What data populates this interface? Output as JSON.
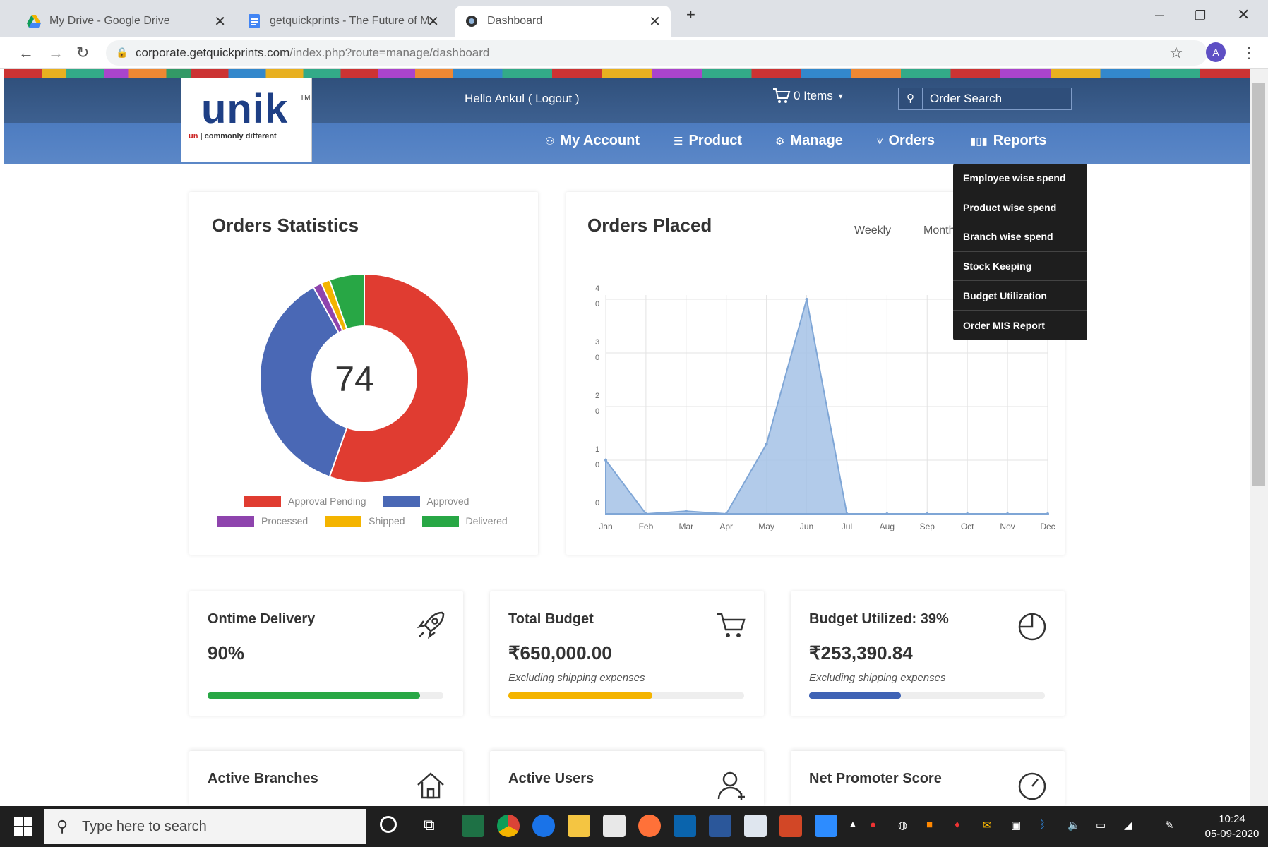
{
  "browser": {
    "tabs": [
      {
        "title": "My Drive - Google Drive",
        "icon": "google-drive-icon"
      },
      {
        "title": "getquickprints - The Future of M",
        "icon": "document-icon"
      },
      {
        "title": "Dashboard",
        "icon": "site-icon"
      }
    ],
    "url_host": "corporate.getquickprints.com",
    "url_path": "/index.php?route=manage/dashboard",
    "profile_initial": "A"
  },
  "header": {
    "logo_brand": "unik",
    "logo_tm": "TM",
    "logo_tag_un": "un",
    "logo_tag_rest": "commonly different",
    "hello": "Hello Ankul ( Logout )",
    "cart": "0 Items",
    "search_placeholder": "Order Search",
    "menu": [
      {
        "label": "My Account",
        "icon": "user-icon"
      },
      {
        "label": "Product",
        "icon": "list-icon"
      },
      {
        "label": "Manage",
        "icon": "gear-icon"
      },
      {
        "label": "Orders",
        "icon": "orders-icon"
      },
      {
        "label": "Reports",
        "icon": "bar-chart-icon"
      }
    ]
  },
  "reports_dropdown": [
    "Employee wise spend",
    "Product wise spend",
    "Branch wise spend",
    "Stock Keeping",
    "Budget Utilization",
    "Order MIS Report"
  ],
  "orders_statistics": {
    "title": "Orders Statistics",
    "center_value": "74",
    "legend": [
      {
        "label": "Approval Pending",
        "color": "#e03c31"
      },
      {
        "label": "Approved",
        "color": "#4a68b5"
      },
      {
        "label": "Processed",
        "color": "#8e44ad"
      },
      {
        "label": "Shipped",
        "color": "#f4b400"
      },
      {
        "label": "Delivered",
        "color": "#28a745"
      }
    ]
  },
  "orders_placed": {
    "title": "Orders Placed",
    "period_tabs": [
      "Weekly",
      "Monthly"
    ]
  },
  "chart_data": [
    {
      "type": "pie",
      "title": "Orders Statistics",
      "center_label": "74",
      "categories": [
        "Approval Pending",
        "Approved",
        "Processed",
        "Shipped",
        "Delivered"
      ],
      "values": [
        41,
        27,
        1,
        1,
        4
      ]
    },
    {
      "type": "area",
      "title": "Orders Placed",
      "categories": [
        "Jan",
        "Feb",
        "Mar",
        "Apr",
        "May",
        "Jun",
        "Jul",
        "Aug",
        "Sep",
        "Oct",
        "Nov",
        "Dec"
      ],
      "values": [
        1,
        0,
        0.05,
        0,
        1.3,
        4,
        0,
        0,
        0,
        0,
        0,
        0
      ],
      "y_ticks": [
        "0",
        "1\n0",
        "2\n0",
        "3\n0",
        "4\n0"
      ],
      "ylim": [
        0,
        4
      ],
      "grid": true,
      "color": "#a4c2e6"
    }
  ],
  "stats": [
    {
      "label": "Ontime Delivery",
      "value": "90%",
      "note": "",
      "progress": 0.9,
      "color": "#28a745",
      "icon": "rocket-icon"
    },
    {
      "label": "Total Budget",
      "value": "₹650,000.00",
      "note": "Excluding shipping expenses",
      "progress": 0.61,
      "color": "#f4b400",
      "icon": "cart-icon"
    },
    {
      "label": "Budget Utilized: 39%",
      "value": "₹253,390.84",
      "note": "Excluding shipping expenses",
      "progress": 0.39,
      "color": "#3f63b5",
      "icon": "pie-chart-icon"
    }
  ],
  "stats2": [
    {
      "label": "Active Branches",
      "icon": "home-icon"
    },
    {
      "label": "Active Users",
      "icon": "user-add-icon"
    },
    {
      "label": "Net Promoter Score",
      "icon": "gauge-icon"
    }
  ],
  "taskbar": {
    "search_placeholder": "Type here to search",
    "time": "10:24",
    "date": "05-09-2020"
  }
}
